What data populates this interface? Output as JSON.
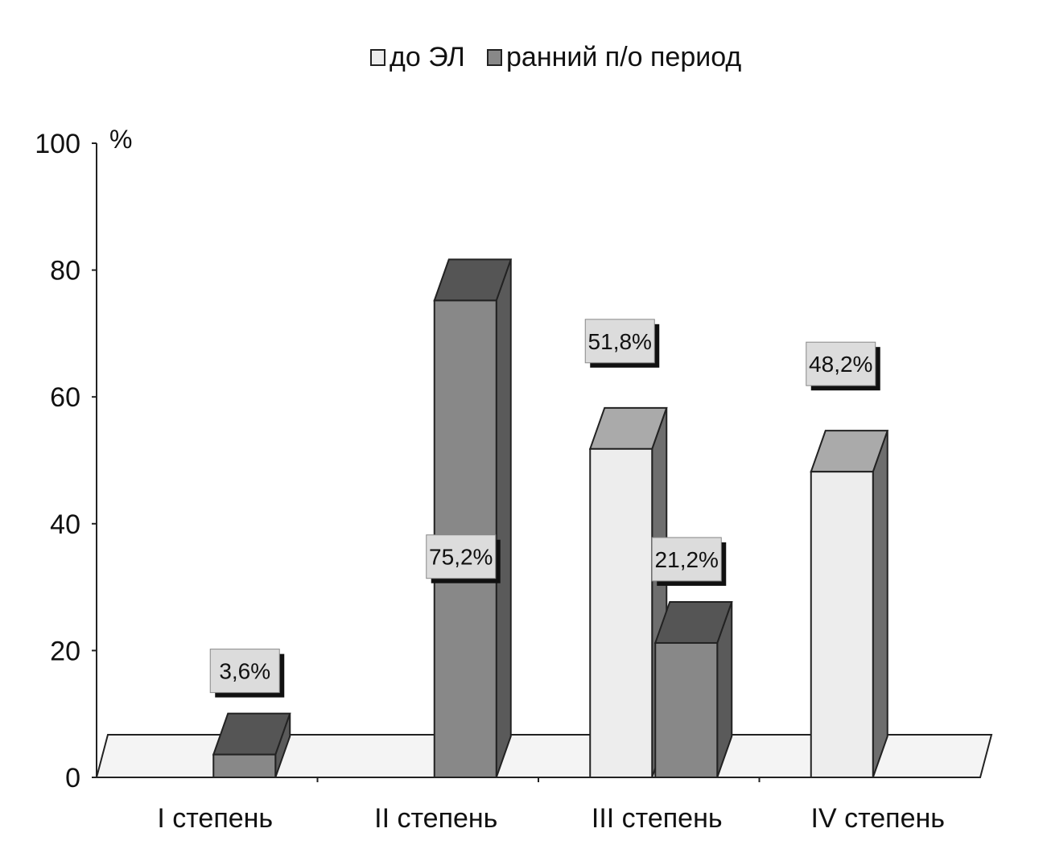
{
  "chart_data": {
    "type": "bar",
    "style": "3d",
    "title": "",
    "xlabel": "",
    "ylabel": "%",
    "ylim": [
      0,
      100
    ],
    "yticks": [
      0,
      20,
      40,
      60,
      80,
      100
    ],
    "grid": false,
    "legend_position": "top",
    "categories": [
      "I степень",
      "II степень",
      "III степень",
      "IV степень"
    ],
    "series": [
      {
        "name": "до ЭЛ",
        "color": "#ededed",
        "values": [
          null,
          null,
          51.8,
          48.2
        ],
        "labels": [
          "",
          "",
          "51,8%",
          "48,2%"
        ]
      },
      {
        "name": "ранний п/о период",
        "color": "#888888",
        "values": [
          3.6,
          75.2,
          21.2,
          null
        ],
        "labels": [
          "3,6%",
          "75,2%",
          "21,2%",
          ""
        ]
      }
    ]
  }
}
